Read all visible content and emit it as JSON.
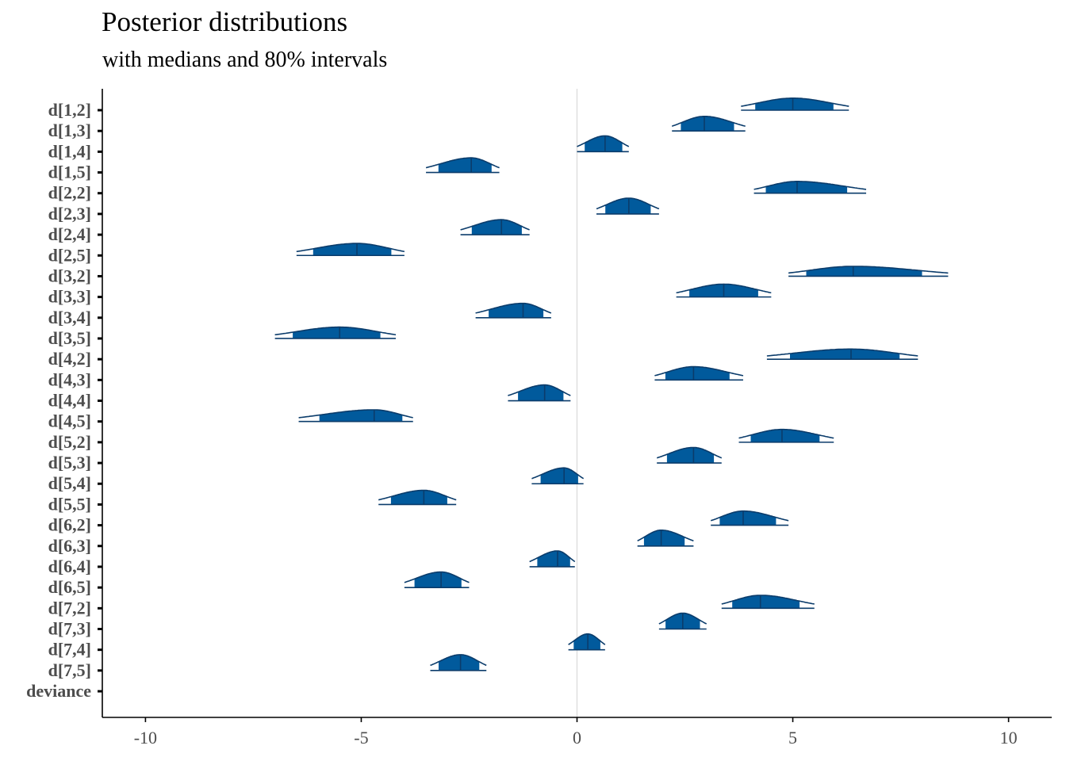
{
  "chart_data": {
    "type": "area",
    "title": "Posterior distributions",
    "subtitle": "with medians and 80% intervals",
    "xlabel": "",
    "ylabel": "",
    "xlim": [
      -11,
      11
    ],
    "x_ticks": [
      "-10",
      "-5",
      "0",
      "5",
      "10"
    ],
    "x_tick_values": [
      -10,
      -5,
      0,
      5,
      10
    ],
    "reference_line": 0,
    "fill_color": "#015A9C",
    "line_color": "#0B3C6B",
    "ref_line_color": "#D9D9D9",
    "parameters": [
      {
        "name": "d[1,2]",
        "median": 5.0,
        "lo": 3.8,
        "hi": 6.3
      },
      {
        "name": "d[1,3]",
        "median": 2.95,
        "lo": 2.2,
        "hi": 3.9
      },
      {
        "name": "d[1,4]",
        "median": 0.65,
        "lo": 0.0,
        "hi": 1.2
      },
      {
        "name": "d[1,5]",
        "median": -2.45,
        "lo": -3.5,
        "hi": -1.8
      },
      {
        "name": "d[2,2]",
        "median": 5.1,
        "lo": 4.1,
        "hi": 6.7
      },
      {
        "name": "d[2,3]",
        "median": 1.2,
        "lo": 0.45,
        "hi": 1.9
      },
      {
        "name": "d[2,4]",
        "median": -1.75,
        "lo": -2.7,
        "hi": -1.1
      },
      {
        "name": "d[2,5]",
        "median": -5.1,
        "lo": -6.5,
        "hi": -4.0
      },
      {
        "name": "d[3,2]",
        "median": 6.4,
        "lo": 4.9,
        "hi": 8.6
      },
      {
        "name": "d[3,3]",
        "median": 3.4,
        "lo": 2.3,
        "hi": 4.5
      },
      {
        "name": "d[3,4]",
        "median": -1.25,
        "lo": -2.35,
        "hi": -0.6
      },
      {
        "name": "d[3,5]",
        "median": -5.5,
        "lo": -7.0,
        "hi": -4.2
      },
      {
        "name": "d[4,2]",
        "median": 6.35,
        "lo": 4.4,
        "hi": 7.9
      },
      {
        "name": "d[4,3]",
        "median": 2.7,
        "lo": 1.8,
        "hi": 3.85
      },
      {
        "name": "d[4,4]",
        "median": -0.75,
        "lo": -1.6,
        "hi": -0.15
      },
      {
        "name": "d[4,5]",
        "median": -4.7,
        "lo": -6.45,
        "hi": -3.8
      },
      {
        "name": "d[5,2]",
        "median": 4.75,
        "lo": 3.75,
        "hi": 5.95
      },
      {
        "name": "d[5,3]",
        "median": 2.7,
        "lo": 1.85,
        "hi": 3.35
      },
      {
        "name": "d[5,4]",
        "median": -0.3,
        "lo": -1.05,
        "hi": 0.15
      },
      {
        "name": "d[5,5]",
        "median": -3.55,
        "lo": -4.6,
        "hi": -2.8
      },
      {
        "name": "d[6,2]",
        "median": 3.85,
        "lo": 3.1,
        "hi": 4.9
      },
      {
        "name": "d[6,3]",
        "median": 1.95,
        "lo": 1.4,
        "hi": 2.7
      },
      {
        "name": "d[6,4]",
        "median": -0.45,
        "lo": -1.1,
        "hi": -0.05
      },
      {
        "name": "d[6,5]",
        "median": -3.15,
        "lo": -4.0,
        "hi": -2.5
      },
      {
        "name": "d[7,2]",
        "median": 4.25,
        "lo": 3.35,
        "hi": 5.5
      },
      {
        "name": "d[7,3]",
        "median": 2.45,
        "lo": 1.9,
        "hi": 3.0
      },
      {
        "name": "d[7,4]",
        "median": 0.25,
        "lo": -0.2,
        "hi": 0.65
      },
      {
        "name": "d[7,5]",
        "median": -2.7,
        "lo": -3.4,
        "hi": -2.1
      },
      {
        "name": "deviance",
        "median": null,
        "lo": null,
        "hi": null
      }
    ]
  }
}
